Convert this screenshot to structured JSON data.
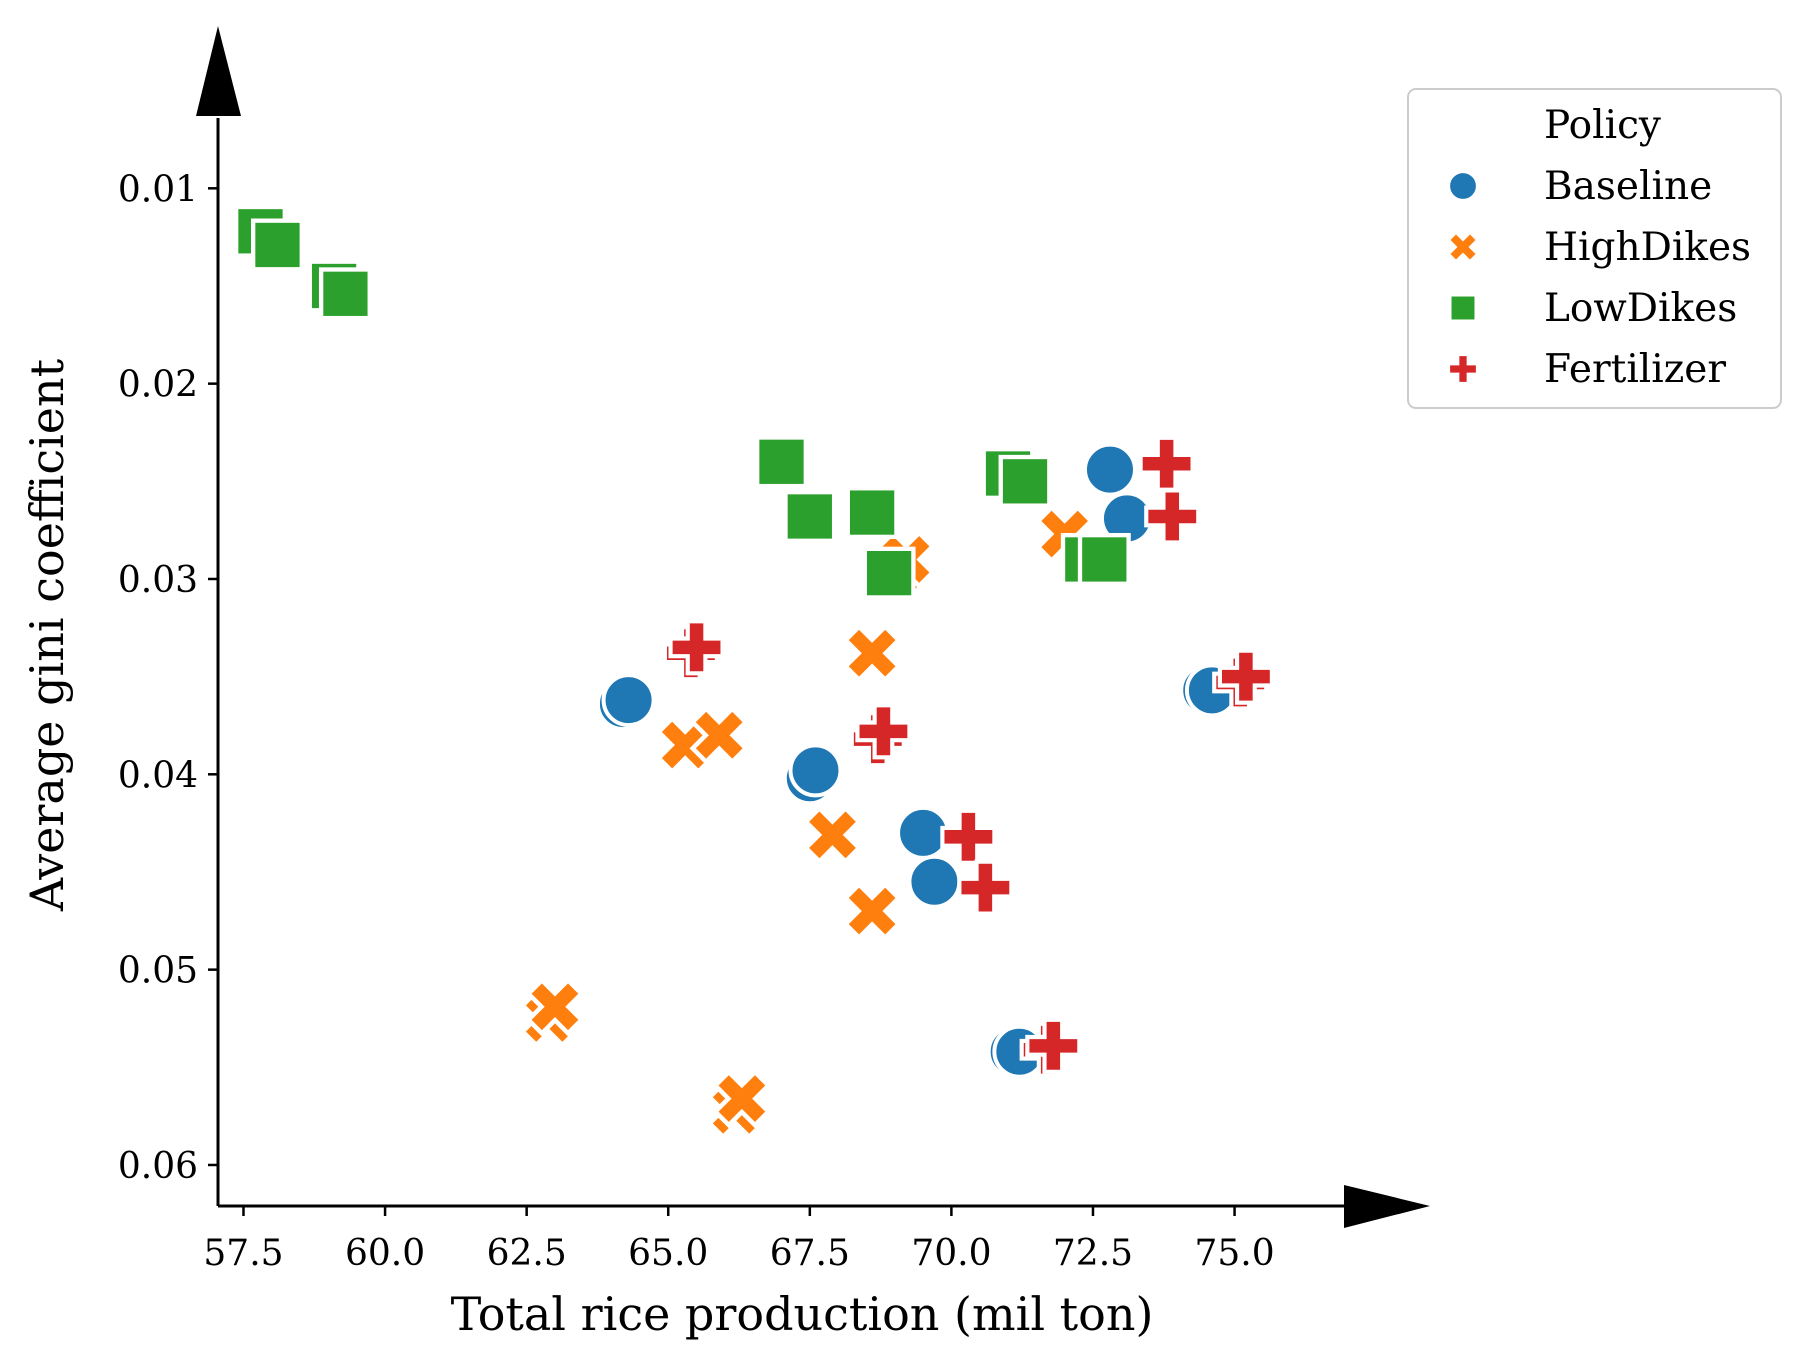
{
  "chart_data": {
    "type": "scatter",
    "xlabel": "Total rice production (mil ton)",
    "ylabel": "Average gini coefficient",
    "xlim": [
      57.05,
      76.95
    ],
    "ylim": [
      0.0621,
      0.0064
    ],
    "y_inverted": true,
    "xticks": [
      "57.5",
      "60.0",
      "62.5",
      "65.0",
      "67.5",
      "70.0",
      "72.5",
      "75.0"
    ],
    "yticks": [
      "0.01",
      "0.02",
      "0.03",
      "0.04",
      "0.05",
      "0.06"
    ],
    "grid": false,
    "legend": {
      "title": "Policy",
      "placement": "upper-right-outside"
    },
    "series": [
      {
        "name": "Baseline",
        "marker": "circle",
        "color": "#1f77b4",
        "points": [
          [
            72.8,
            0.0244
          ],
          [
            73.1,
            0.0269
          ],
          [
            64.2,
            0.0364
          ],
          [
            64.3,
            0.0362
          ],
          [
            67.5,
            0.0402
          ],
          [
            67.6,
            0.0398
          ],
          [
            69.5,
            0.043
          ],
          [
            69.7,
            0.0455
          ],
          [
            74.5,
            0.0357
          ],
          [
            74.6,
            0.0357
          ],
          [
            71.1,
            0.0542
          ],
          [
            71.2,
            0.0542
          ]
        ]
      },
      {
        "name": "HighDikes",
        "marker": "x",
        "color": "#ff7f0e",
        "points": [
          [
            69.1,
            0.0294
          ],
          [
            69.2,
            0.029
          ],
          [
            72.0,
            0.0277
          ],
          [
            68.6,
            0.0338
          ],
          [
            65.3,
            0.0385
          ],
          [
            65.9,
            0.038
          ],
          [
            67.9,
            0.0431
          ],
          [
            68.6,
            0.047
          ],
          [
            62.9,
            0.0525
          ],
          [
            63.0,
            0.0519
          ],
          [
            66.2,
            0.0572
          ],
          [
            66.3,
            0.0566
          ]
        ]
      },
      {
        "name": "LowDikes",
        "marker": "square",
        "color": "#2ca02c",
        "points": [
          [
            57.8,
            0.0122
          ],
          [
            58.1,
            0.0129
          ],
          [
            59.1,
            0.015
          ],
          [
            59.3,
            0.0154
          ],
          [
            67.0,
            0.024
          ],
          [
            67.5,
            0.0268
          ],
          [
            68.6,
            0.0266
          ],
          [
            68.9,
            0.0297
          ],
          [
            71.0,
            0.0246
          ],
          [
            71.3,
            0.025
          ],
          [
            72.4,
            0.029
          ],
          [
            72.7,
            0.029
          ]
        ]
      },
      {
        "name": "Fertilizer",
        "marker": "plus",
        "color": "#d62728",
        "points": [
          [
            73.8,
            0.0241
          ],
          [
            73.9,
            0.0268
          ],
          [
            65.4,
            0.0338
          ],
          [
            65.5,
            0.0335
          ],
          [
            68.7,
            0.0382
          ],
          [
            68.8,
            0.0378
          ],
          [
            70.3,
            0.0432
          ],
          [
            70.6,
            0.0458
          ],
          [
            75.1,
            0.0353
          ],
          [
            75.2,
            0.035
          ],
          [
            71.7,
            0.0541
          ],
          [
            71.8,
            0.0539
          ]
        ]
      }
    ]
  }
}
